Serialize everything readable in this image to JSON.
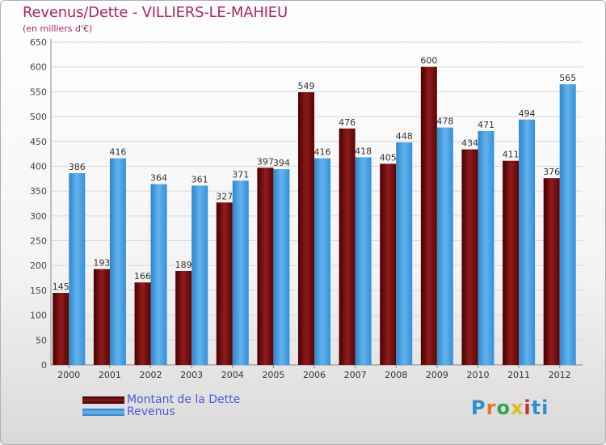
{
  "chart_data": {
    "type": "bar",
    "title": "Revenus/Dette - VILLIERS-LE-MAHIEU",
    "subtitle": "(en milliers d'€)",
    "categories": [
      "2000",
      "2001",
      "2002",
      "2003",
      "2004",
      "2005",
      "2006",
      "2007",
      "2008",
      "2009",
      "2010",
      "2011",
      "2012"
    ],
    "series": [
      {
        "name": "Montant de la Dette",
        "color": "#7a1010",
        "values": [
          145,
          193,
          166,
          189,
          327,
          397,
          549,
          476,
          405,
          600,
          434,
          411,
          376
        ]
      },
      {
        "name": "Revenus",
        "color": "#3d9be0",
        "values": [
          386,
          416,
          364,
          361,
          371,
          394,
          416,
          418,
          448,
          478,
          471,
          494,
          565
        ]
      }
    ],
    "ylim": [
      0,
      650
    ],
    "yticks": [
      0,
      50,
      100,
      150,
      200,
      250,
      300,
      350,
      400,
      450,
      500,
      550,
      600,
      650
    ],
    "grid": true,
    "legend_position": "bottom-left"
  },
  "logo": {
    "text": "Proxiti"
  }
}
